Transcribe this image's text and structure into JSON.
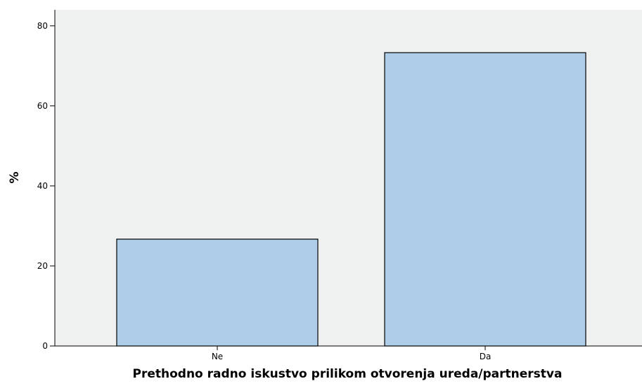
{
  "chart_data": {
    "type": "bar",
    "categories": [
      "Ne",
      "Da"
    ],
    "values": [
      26.7,
      73.3
    ],
    "xlabel": "Prethodno radno iskustvo prilikom otvorenja ureda/partnerstva",
    "ylabel": "%",
    "ylim": [
      0,
      84
    ],
    "yticks": [
      0,
      20,
      40,
      60,
      80
    ],
    "grid": false,
    "legend": "none",
    "colors": {
      "bar_fill": "#aecde9",
      "bar_stroke": "#000000",
      "plot_background": "#eff0f0",
      "axis": "#000000"
    }
  }
}
